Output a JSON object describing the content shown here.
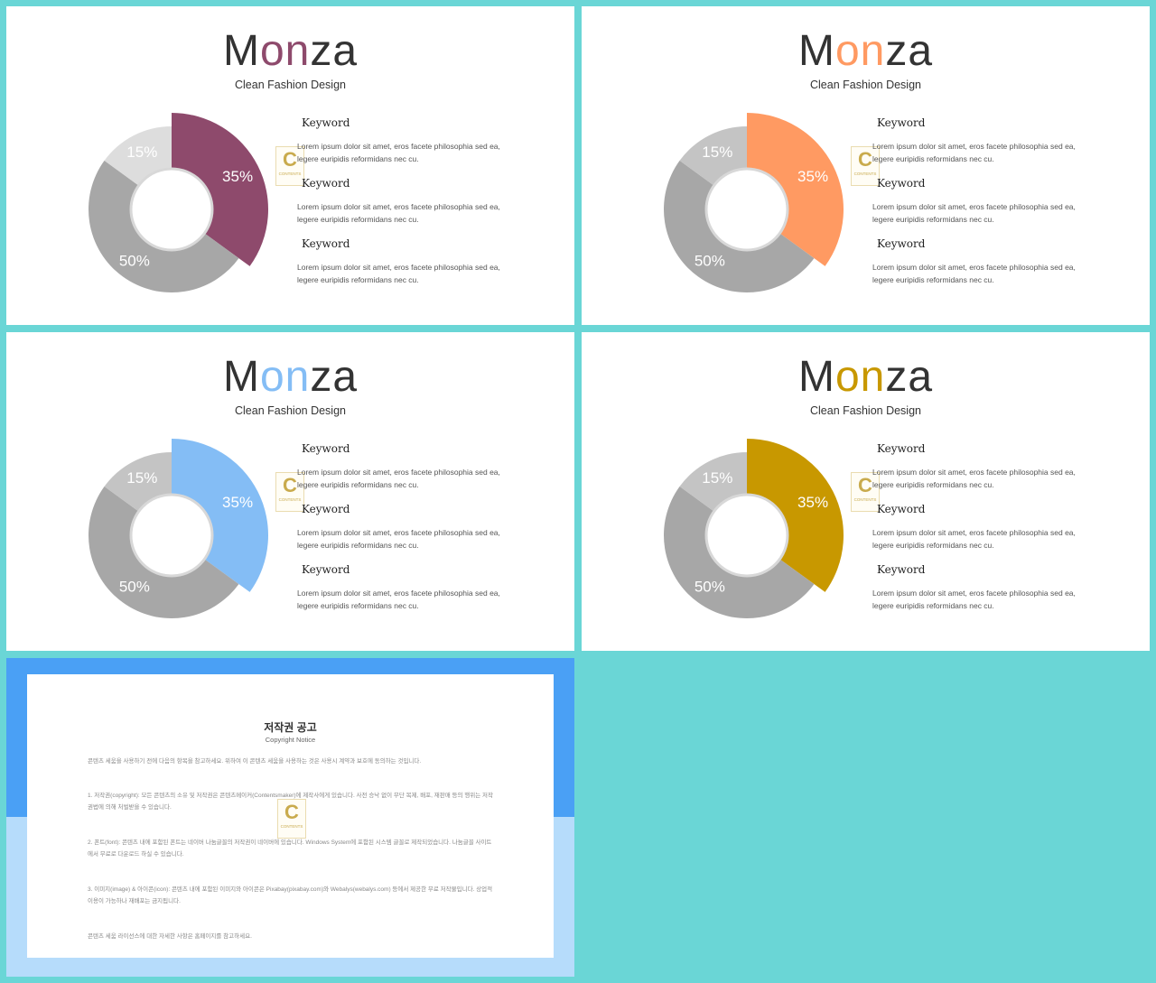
{
  "slides": [
    {
      "title_parts": [
        "M",
        "on",
        "za"
      ],
      "subtitle": "Clean Fashion Design",
      "accent": "#8e4a6c",
      "ring_color": "#dddddd",
      "chart_data": {
        "type": "pie",
        "values": [
          35,
          50,
          15
        ],
        "labels": [
          "35%",
          "50%",
          "15%"
        ],
        "colors": [
          "#8e4a6c",
          "#a7a7a7",
          "#dddddd"
        ]
      },
      "items": [
        {
          "keyword": "Keyword",
          "text_line1": "Lorem ipsum dolor sit amet, eros facete philosophia sed ea,",
          "text_line2": "legere euripidis reformidans nec cu."
        },
        {
          "keyword": "Keyword",
          "text_line1": "Lorem ipsum dolor sit amet, eros facete philosophia sed ea,",
          "text_line2": "legere euripidis reformidans nec cu."
        },
        {
          "keyword": "Keyword",
          "text_line1": "Lorem ipsum dolor sit amet, eros facete philosophia sed ea,",
          "text_line2": "legere euripidis reformidans nec cu."
        }
      ]
    },
    {
      "title_parts": [
        "M",
        "on",
        "za"
      ],
      "subtitle": "Clean Fashion Design",
      "accent": "#ff9a62",
      "ring_color": "#c4c4c4",
      "chart_data": {
        "type": "pie",
        "values": [
          35,
          50,
          15
        ],
        "labels": [
          "35%",
          "50%",
          "15%"
        ],
        "colors": [
          "#ff9a62",
          "#a7a7a7",
          "#c4c4c4"
        ]
      },
      "items": [
        {
          "keyword": "Keyword",
          "text_line1": "Lorem ipsum dolor sit amet, eros facete philosophia sed ea,",
          "text_line2": "legere euripidis reformidans nec cu."
        },
        {
          "keyword": "Keyword",
          "text_line1": "Lorem ipsum dolor sit amet, eros facete philosophia sed ea,",
          "text_line2": "legere euripidis reformidans nec cu."
        },
        {
          "keyword": "Keyword",
          "text_line1": "Lorem ipsum dolor sit amet, eros facete philosophia sed ea,",
          "text_line2": "legere euripidis reformidans nec cu."
        }
      ]
    },
    {
      "title_parts": [
        "M",
        "on",
        "za"
      ],
      "subtitle": "Clean Fashion Design",
      "accent": "#84bdf5",
      "ring_color": "#c4c4c4",
      "chart_data": {
        "type": "pie",
        "values": [
          35,
          50,
          15
        ],
        "labels": [
          "35%",
          "50%",
          "15%"
        ],
        "colors": [
          "#84bdf5",
          "#a7a7a7",
          "#c4c4c4"
        ]
      },
      "items": [
        {
          "keyword": "Keyword",
          "text_line1": "Lorem ipsum dolor sit amet, eros facete philosophia sed ea,",
          "text_line2": "legere euripidis reformidans nec cu."
        },
        {
          "keyword": "Keyword",
          "text_line1": "Lorem ipsum dolor sit amet, eros facete philosophia sed ea,",
          "text_line2": "legere euripidis reformidans nec cu."
        },
        {
          "keyword": "Keyword",
          "text_line1": "Lorem ipsum dolor sit amet, eros facete philosophia sed ea,",
          "text_line2": "legere euripidis reformidans nec cu."
        }
      ]
    },
    {
      "title_parts": [
        "M",
        "on",
        "za"
      ],
      "subtitle": "Clean Fashion Design",
      "accent": "#c89800",
      "ring_color": "#c4c4c4",
      "chart_data": {
        "type": "pie",
        "values": [
          35,
          50,
          15
        ],
        "labels": [
          "35%",
          "50%",
          "15%"
        ],
        "colors": [
          "#c89800",
          "#a7a7a7",
          "#c4c4c4"
        ]
      },
      "items": [
        {
          "keyword": "Keyword",
          "text_line1": "Lorem ipsum dolor sit amet, eros facete philosophia sed ea,",
          "text_line2": "legere euripidis reformidans nec cu."
        },
        {
          "keyword": "Keyword",
          "text_line1": "Lorem ipsum dolor sit amet, eros facete philosophia sed ea,",
          "text_line2": "legere euripidis reformidans nec cu."
        },
        {
          "keyword": "Keyword",
          "text_line1": "Lorem ipsum dolor sit amet, eros facete philosophia sed ea,",
          "text_line2": "legere euripidis reformidans nec cu."
        }
      ]
    }
  ],
  "logo": {
    "letter": "C",
    "caption": "CONTENTS"
  },
  "notice": {
    "title": "저작권 공고",
    "subtitle": "Copyright Notice",
    "intro": "콘텐츠 세움을 사용하기 전에 다음의 항목을 참고하세요. 위하여 이 콘텐츠 세움을 사용하는 것은 사용시 계약과 보호에 동의하는 것입니다.",
    "p1": "1. 저작권(copyright): 모든 콘텐츠의 소유 및 저작권은 콘텐츠메이커(Contentsmaker)에 제작사에게 있습니다. 사전 승낙 없이 무단 복제, 배포, 재판매 등의 행위는 저작권법에 의해 처벌받을 수 있습니다.",
    "p2": "2. 폰트(font): 콘텐츠 내에 포함된 폰트는 네이버 나눔글꼴의 저작권이 네이버에 있습니다. Windows System에 포함된 시스템 글꼴로 제작되었습니다. 나눔글꼴 사이트에서 무료로 다운로드 하실 수 있습니다.",
    "p3": "3. 이미지(image) & 아이콘(icon): 콘텐츠 내에 포함된 이미지와 아이콘은 Pixabay(pixabay.com)와 Webalys(webalys.com) 등에서 제공한 무료 저작물입니다. 상업적 이용이 가능하나 재배포는 금지됩니다.",
    "outro": "콘텐츠 세움 라이선스에 대한 자세한 사항은 홈페이지를 참고하세요."
  }
}
